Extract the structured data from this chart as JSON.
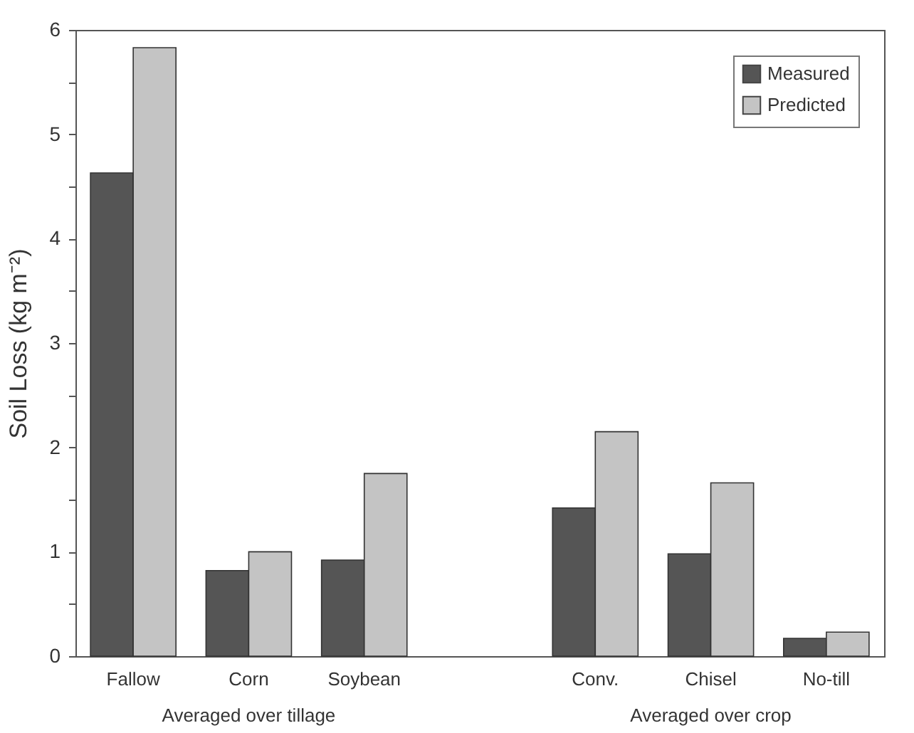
{
  "chart_data": {
    "type": "bar",
    "ylabel": "Soil Loss (kg m⁻²)",
    "categories": [
      "Fallow",
      "Corn",
      "Soybean",
      null,
      "Conv.",
      "Chisel",
      "No-till"
    ],
    "series": [
      {
        "name": "Measured",
        "color": "#555555",
        "values": [
          4.63,
          0.82,
          0.92,
          null,
          1.42,
          0.98,
          0.17
        ]
      },
      {
        "name": "Predicted",
        "color": "#c4c4c4",
        "values": [
          5.83,
          1.0,
          1.75,
          null,
          2.15,
          1.66,
          0.23
        ]
      }
    ],
    "ylim": [
      0,
      6
    ],
    "yticks": [
      0,
      {
        "value": 0.5,
        "label": null
      },
      1,
      {
        "value": 1.5,
        "label": null
      },
      2,
      {
        "value": 2.5,
        "label": null
      },
      3,
      {
        "value": 3.5,
        "label": null
      },
      4,
      {
        "value": 4.5,
        "label": null
      },
      5,
      {
        "value": 5.5,
        "label": null
      },
      6
    ],
    "annotations": [
      "Averaged over tillage",
      "Averaged over crop"
    ],
    "legend": "top right",
    "grid": false
  }
}
